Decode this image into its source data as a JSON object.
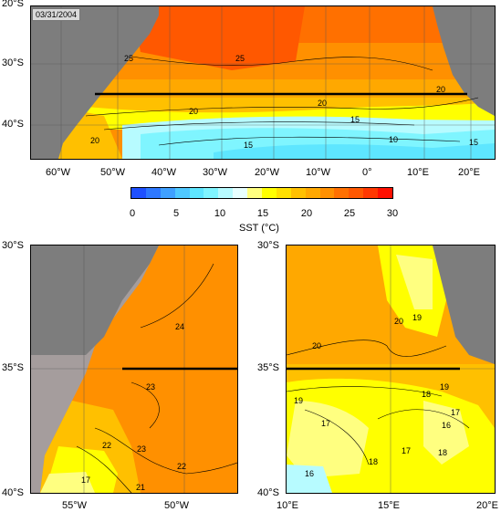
{
  "date": "03/31/2004",
  "top_map": {
    "lat_labels": [
      "20°S",
      "30°S",
      "40°S"
    ],
    "lon_labels": [
      "60°W",
      "50°W",
      "40°W",
      "30°W",
      "20°W",
      "10°W",
      "0°",
      "10°E",
      "20°E"
    ],
    "contour_labels": [
      "25",
      "25",
      "20",
      "20",
      "20",
      "20",
      "15",
      "15",
      "10",
      "15"
    ]
  },
  "colorbar": {
    "title": "SST (°C)",
    "ticks": [
      "0",
      "5",
      "10",
      "15",
      "20",
      "25",
      "30"
    ],
    "colors": [
      "#1e50ff",
      "#2e78ff",
      "#3fa0ff",
      "#4fc8ff",
      "#5ee6ff",
      "#7ff5ff",
      "#b7fbff",
      "#e8ffff",
      "#ffff80",
      "#ffff00",
      "#ffe000",
      "#ffc000",
      "#ffa800",
      "#ff9000",
      "#ff7000",
      "#ff5800",
      "#ff3800",
      "#ff1000"
    ]
  },
  "left_map": {
    "lat_labels": [
      "30°S",
      "35°S",
      "40°S"
    ],
    "lon_labels": [
      "55°W",
      "50°W"
    ],
    "contour_labels": [
      "24",
      "23",
      "23",
      "22",
      "22",
      "21",
      "17"
    ]
  },
  "right_map": {
    "lat_labels": [
      "30°S",
      "35°S",
      "40°S"
    ],
    "lon_labels": [
      "10°E",
      "15°E",
      "20°E"
    ],
    "contour_labels": [
      "20",
      "20",
      "19",
      "19",
      "19",
      "18",
      "18",
      "17",
      "17",
      "16",
      "16",
      "17",
      "18"
    ]
  },
  "colors": {
    "land": "#7d7d7d",
    "land_light": "#a59d9d"
  }
}
